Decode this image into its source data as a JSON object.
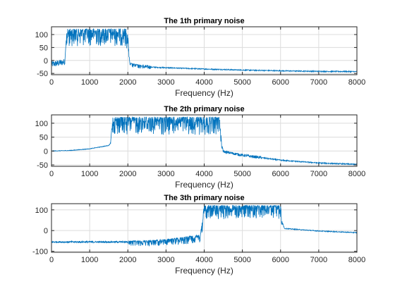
{
  "chart_data": [
    {
      "type": "line",
      "title": "The 1th primary noise",
      "xlabel": "Frequency (Hz)",
      "ylabel": "",
      "xlim": [
        0,
        8000
      ],
      "ylim": [
        -55,
        130
      ],
      "xticks": [
        0,
        1000,
        2000,
        3000,
        4000,
        5000,
        6000,
        7000,
        8000
      ],
      "yticks": [
        -50,
        0,
        50,
        100
      ],
      "grid": true,
      "series": [
        {
          "color": "#0072BD",
          "envelope": {
            "x": [
              0,
              200,
              350,
              400,
              500,
              1000,
              1500,
              1950,
              2000,
              2050,
              2500,
              3000,
              4000,
              5000,
              6000,
              7000,
              8000
            ],
            "base": [
              -15,
              -10,
              -5,
              70,
              85,
              85,
              85,
              85,
              60,
              -20,
              -25,
              -28,
              -33,
              -37,
              -40,
              -42,
              -43
            ],
            "peak": [
              -15,
              -10,
              -5,
              122,
              122,
              122,
              122,
              122,
              100,
              -10,
              -22,
              -26,
              -32,
              -36,
              -39,
              -41,
              -42
            ],
            "noise_range": [
              [
                0,
                400,
                25
              ],
              [
                400,
                2000,
                50
              ],
              [
                2000,
                2600,
                15
              ],
              [
                2600,
                8000,
                4
              ]
            ]
          }
        }
      ]
    },
    {
      "type": "line",
      "title": "The 2th primary noise",
      "xlabel": "Frequency (Hz)",
      "ylabel": "",
      "xlim": [
        0,
        8000
      ],
      "ylim": [
        -55,
        130
      ],
      "xticks": [
        0,
        1000,
        2000,
        3000,
        4000,
        5000,
        6000,
        7000,
        8000
      ],
      "yticks": [
        -50,
        0,
        50,
        100
      ],
      "grid": true,
      "series": [
        {
          "color": "#0072BD",
          "envelope": {
            "x": [
              0,
              500,
              1000,
              1500,
              1550,
              1600,
              3000,
              4400,
              4450,
              4500,
              5000,
              6000,
              7000,
              8000
            ],
            "base": [
              0,
              2,
              8,
              20,
              30,
              85,
              85,
              85,
              20,
              -2,
              -15,
              -33,
              -43,
              -48
            ],
            "peak": [
              0,
              2,
              8,
              20,
              35,
              122,
              122,
              122,
              40,
              0,
              -12,
              -30,
              -41,
              -47
            ],
            "noise_range": [
              [
                0,
                1500,
                2
              ],
              [
                1600,
                4400,
                45
              ],
              [
                4400,
                5500,
                10
              ],
              [
                5500,
                8000,
                4
              ]
            ]
          }
        }
      ]
    },
    {
      "type": "line",
      "title": "The 3th primary noise",
      "xlabel": "Frequency (Hz)",
      "ylabel": "",
      "xlim": [
        0,
        8000
      ],
      "ylim": [
        -105,
        130
      ],
      "xticks": [
        0,
        1000,
        2000,
        3000,
        4000,
        5000,
        6000,
        7000,
        8000
      ],
      "yticks": [
        -100,
        0,
        100
      ],
      "grid": true,
      "series": [
        {
          "color": "#0072BD",
          "envelope": {
            "x": [
              0,
              1000,
              2000,
              2500,
              3000,
              3500,
              3900,
              4000,
              5000,
              6000,
              6050,
              6100,
              7000,
              8000
            ],
            "base": [
              -55,
              -55,
              -55,
              -55,
              -52,
              -45,
              -35,
              80,
              85,
              80,
              20,
              10,
              -2,
              -10
            ],
            "peak": [
              -50,
              -50,
              -50,
              -48,
              -42,
              -30,
              -20,
              122,
              122,
              122,
              40,
              12,
              0,
              -8
            ],
            "noise_range": [
              [
                0,
                2000,
                8
              ],
              [
                2000,
                3900,
                35
              ],
              [
                3900,
                6050,
                45
              ],
              [
                6050,
                8000,
                4
              ]
            ]
          }
        }
      ]
    }
  ]
}
